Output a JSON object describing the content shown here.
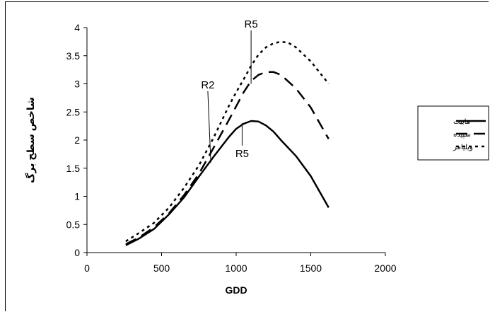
{
  "chart_data": {
    "type": "line",
    "title": "",
    "xlabel": "GDD",
    "ylabel": "شاخص سطح برگ",
    "xlim": [
      0,
      2000
    ],
    "ylim": [
      0,
      4
    ],
    "xticks": [
      0,
      500,
      1000,
      1500,
      2000
    ],
    "yticks": [
      0,
      0.5,
      1,
      1.5,
      2,
      2.5,
      3,
      3.5,
      4
    ],
    "grid": false,
    "legend_position": "right",
    "series": [
      {
        "name": "هابیت",
        "style": "solid",
        "color": "#000000",
        "x": [
          260,
          350,
          450,
          550,
          650,
          750,
          850,
          950,
          1000,
          1050,
          1100,
          1150,
          1200,
          1250,
          1300,
          1400,
          1500,
          1620
        ],
        "y": [
          0.13,
          0.25,
          0.42,
          0.68,
          0.98,
          1.35,
          1.71,
          2.05,
          2.2,
          2.29,
          2.34,
          2.33,
          2.26,
          2.15,
          2.0,
          1.72,
          1.36,
          0.8
        ]
      },
      {
        "name": "سپیده",
        "style": "dash",
        "color": "#000000",
        "x": [
          260,
          350,
          450,
          550,
          650,
          750,
          850,
          950,
          1000,
          1050,
          1100,
          1150,
          1200,
          1250,
          1300,
          1400,
          1500,
          1620
        ],
        "y": [
          0.15,
          0.27,
          0.45,
          0.7,
          1.02,
          1.4,
          1.87,
          2.35,
          2.6,
          2.85,
          3.05,
          3.16,
          3.21,
          3.21,
          3.16,
          2.92,
          2.58,
          2.02
        ]
      },
      {
        "name": "ویلیامز",
        "style": "dot",
        "color": "#000000",
        "x": [
          260,
          350,
          450,
          550,
          650,
          750,
          850,
          950,
          1000,
          1050,
          1100,
          1150,
          1200,
          1250,
          1300,
          1350,
          1400,
          1500,
          1620
        ],
        "y": [
          0.2,
          0.35,
          0.53,
          0.8,
          1.15,
          1.55,
          2.05,
          2.6,
          2.85,
          3.08,
          3.32,
          3.52,
          3.65,
          3.72,
          3.75,
          3.73,
          3.65,
          3.4,
          3.0
        ]
      }
    ],
    "annotations": [
      {
        "text": "R5",
        "x": 1100,
        "y": 3.0,
        "label_x": 1100,
        "label_y": 4.0
      },
      {
        "text": "R2",
        "x": 830,
        "y": 1.6,
        "label_x": 810,
        "label_y": 2.92
      },
      {
        "text": "R5",
        "x": 1040,
        "y": 2.3,
        "label_x": 1040,
        "label_y": 1.7
      }
    ]
  }
}
